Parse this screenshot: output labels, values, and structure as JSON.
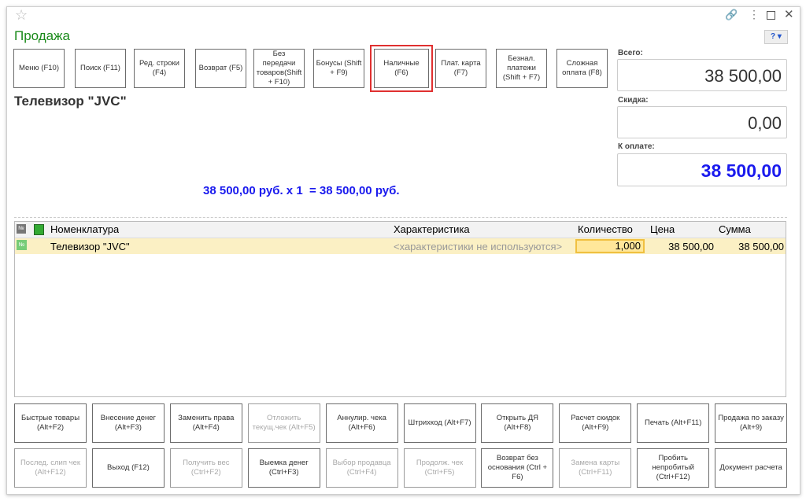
{
  "window": {
    "title": "Продажа",
    "controls": [
      "link-icon",
      "more-icon",
      "maximize-icon",
      "close-icon"
    ]
  },
  "top_buttons": [
    "Меню (F10)",
    "Поиск (F11)",
    "Ред. строки (F4)",
    "Возврат (F5)",
    "Без передачи товаров(Shift + F10)",
    "Бонусы (Shift + F9)",
    "Наличные (F6)",
    "Плат. карта (F7)",
    "Безнал. платежи (Shift + F7)",
    "Сложная оплата (F8)"
  ],
  "highlight_color": "#e03030",
  "product_title": "Телевизор \"JVC\"",
  "calc_line": "38 500,00 руб. х 1  = 38 500,00 руб.",
  "totals": {
    "total_label": "Всего:",
    "total": "38 500,00",
    "discount_label": "Скидка:",
    "discount": "0,00",
    "pay_label": "К оплате:",
    "pay": "38 500,00"
  },
  "table": {
    "headers": [
      "№",
      "",
      "Номенклатура",
      "Характеристика",
      "Количество",
      "Цена",
      "Сумма"
    ],
    "rows": [
      {
        "name": "Телевизор \"JVC\"",
        "characteristic": "<характеристики не используются>",
        "qty": "1,000",
        "price": "38 500,00",
        "sum": "38 500,00"
      }
    ]
  },
  "bottom_row1": [
    {
      "t": "Быстрые товары (Alt+F2)",
      "d": false
    },
    {
      "t": "Внесение денег (Alt+F3)",
      "d": false
    },
    {
      "t": "Заменить права (Alt+F4)",
      "d": false
    },
    {
      "t": "Отложить текущ.чек (Alt+F5)",
      "d": true
    },
    {
      "t": "Аннулир. чека (Alt+F6)",
      "d": false
    },
    {
      "t": "Штрихкод (Alt+F7)",
      "d": false
    },
    {
      "t": "Открыть ДЯ (Alt+F8)",
      "d": false
    },
    {
      "t": "Расчет скидок (Alt+F9)",
      "d": false
    },
    {
      "t": "Печать (Alt+F11)",
      "d": false
    },
    {
      "t": "Продажа по заказу (Alt+9)",
      "d": false
    }
  ],
  "bottom_row2": [
    {
      "t": "Послед. слип чек (Alt+F12)",
      "d": true
    },
    {
      "t": "Выход (F12)",
      "d": false
    },
    {
      "t": "Получить вес (Ctrl+F2)",
      "d": true
    },
    {
      "t": "Выемка денег (Ctrl+F3)",
      "d": false
    },
    {
      "t": "Выбор продавца (Ctrl+F4)",
      "d": true
    },
    {
      "t": "Продолж. чек (Ctrl+F5)",
      "d": true
    },
    {
      "t": "Возврат без основания (Ctrl + F6)",
      "d": false
    },
    {
      "t": "Замена карты (Ctrl+F11)",
      "d": true
    },
    {
      "t": "Пробить непробитый (Ctrl+F12)",
      "d": false
    },
    {
      "t": "Документ расчета",
      "d": false
    }
  ]
}
